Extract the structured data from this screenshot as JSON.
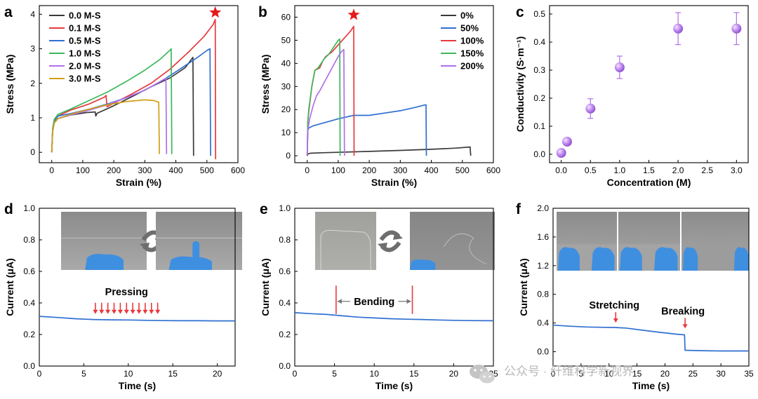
{
  "colors": {
    "black": "#3a3a3a",
    "red": "#e8383d",
    "blue": "#2f6fd0",
    "green": "#3cb85a",
    "purple": "#b070e8",
    "gold": "#d1a017",
    "star": "#e41a1c",
    "photo_bg": "#9a9a9a",
    "glove": "#3f8fe0",
    "arrow_gray": "#6e6e6e",
    "watermark": "#b8b8b8"
  },
  "icons": [
    "star-marker",
    "swap-arrows-icon",
    "down-arrow-marker",
    "wechat-icon"
  ],
  "watermark": "公众号 · 纤维科学新视界",
  "chart_data": [
    {
      "id": "a",
      "panel_label": "a",
      "type": "line",
      "xlabel": "Strain (%)",
      "ylabel": "Stress (MPa)",
      "xlim": [
        -40,
        600
      ],
      "ylim": [
        -0.3,
        4.25
      ],
      "xticks": [
        0,
        100,
        200,
        300,
        400,
        500,
        600
      ],
      "yticks": [
        0,
        1,
        2,
        3,
        4
      ],
      "grid": false,
      "legend_position": "top-left",
      "annotation": "star above the 0.1 M-S curve maximum",
      "star_point": [
        527,
        4.05
      ],
      "series": [
        {
          "name": "0.0 M-S",
          "color": "#3a3a3a",
          "points": [
            [
              0,
              0
            ],
            [
              3,
              0.6
            ],
            [
              8,
              0.85
            ],
            [
              20,
              0.98
            ],
            [
              60,
              1.08
            ],
            [
              110,
              1.15
            ],
            [
              140,
              1.17
            ],
            [
              142,
              1.05
            ],
            [
              146,
              1.13
            ],
            [
              200,
              1.35
            ],
            [
              260,
              1.62
            ],
            [
              320,
              1.9
            ],
            [
              380,
              2.15
            ],
            [
              430,
              2.45
            ],
            [
              455,
              2.75
            ],
            [
              457,
              -0.1
            ]
          ]
        },
        {
          "name": "0.1 M-S",
          "color": "#e8383d",
          "points": [
            [
              0,
              0
            ],
            [
              3,
              0.6
            ],
            [
              8,
              0.9
            ],
            [
              20,
              1.05
            ],
            [
              60,
              1.22
            ],
            [
              120,
              1.4
            ],
            [
              170,
              1.6
            ],
            [
              175,
              1.65
            ],
            [
              178,
              1.32
            ],
            [
              200,
              1.42
            ],
            [
              260,
              1.7
            ],
            [
              320,
              2.0
            ],
            [
              380,
              2.4
            ],
            [
              440,
              2.9
            ],
            [
              490,
              3.35
            ],
            [
              520,
              3.7
            ],
            [
              527,
              3.85
            ],
            [
              528,
              -0.2
            ]
          ]
        },
        {
          "name": "0.5 M-S",
          "color": "#2f6fd0",
          "points": [
            [
              0,
              0
            ],
            [
              3,
              0.65
            ],
            [
              8,
              0.92
            ],
            [
              20,
              1.05
            ],
            [
              60,
              1.12
            ],
            [
              120,
              1.25
            ],
            [
              180,
              1.4
            ],
            [
              240,
              1.58
            ],
            [
              300,
              1.8
            ],
            [
              360,
              2.1
            ],
            [
              420,
              2.45
            ],
            [
              470,
              2.75
            ],
            [
              500,
              2.95
            ],
            [
              510,
              3.0
            ],
            [
              512,
              -0.1
            ]
          ]
        },
        {
          "name": "1.0 M-S",
          "color": "#3cb85a",
          "points": [
            [
              0,
              0
            ],
            [
              3,
              0.7
            ],
            [
              8,
              0.95
            ],
            [
              20,
              1.1
            ],
            [
              60,
              1.25
            ],
            [
              120,
              1.5
            ],
            [
              180,
              1.75
            ],
            [
              240,
              2.05
            ],
            [
              300,
              2.38
            ],
            [
              350,
              2.7
            ],
            [
              380,
              2.95
            ],
            [
              385,
              3.0
            ],
            [
              387,
              -0.05
            ]
          ]
        },
        {
          "name": "2.0 M-S",
          "color": "#b070e8",
          "points": [
            [
              0,
              0
            ],
            [
              3,
              0.6
            ],
            [
              8,
              0.85
            ],
            [
              20,
              0.98
            ],
            [
              60,
              1.08
            ],
            [
              120,
              1.22
            ],
            [
              180,
              1.38
            ],
            [
              240,
              1.58
            ],
            [
              300,
              1.8
            ],
            [
              340,
              2.0
            ],
            [
              368,
              2.15
            ],
            [
              370,
              -0.05
            ]
          ]
        },
        {
          "name": "3.0 M-S",
          "color": "#d1a017",
          "points": [
            [
              0,
              0
            ],
            [
              3,
              0.6
            ],
            [
              8,
              0.85
            ],
            [
              20,
              0.97
            ],
            [
              60,
              1.1
            ],
            [
              120,
              1.25
            ],
            [
              180,
              1.38
            ],
            [
              240,
              1.47
            ],
            [
              300,
              1.52
            ],
            [
              330,
              1.5
            ],
            [
              345,
              1.45
            ],
            [
              347,
              -0.05
            ]
          ]
        }
      ]
    },
    {
      "id": "b",
      "panel_label": "b",
      "type": "line",
      "xlabel": "Strain (%)",
      "ylabel": "Stress (MPa)",
      "xlim": [
        -40,
        600
      ],
      "ylim": [
        -3,
        65
      ],
      "xticks": [
        0,
        100,
        200,
        300,
        400,
        500,
        600
      ],
      "yticks": [
        0,
        10,
        20,
        30,
        40,
        50,
        60
      ],
      "grid": false,
      "legend_position": "top-right",
      "annotation": "star above the 100% curve maximum",
      "star_point": [
        150,
        61
      ],
      "series": [
        {
          "name": "0%",
          "color": "#3a3a3a",
          "points": [
            [
              0,
              0
            ],
            [
              3,
              0.8
            ],
            [
              10,
              1.1
            ],
            [
              50,
              1.3
            ],
            [
              100,
              1.5
            ],
            [
              200,
              1.9
            ],
            [
              300,
              2.3
            ],
            [
              400,
              2.8
            ],
            [
              480,
              3.3
            ],
            [
              525,
              3.8
            ],
            [
              527,
              0
            ]
          ]
        },
        {
          "name": "50%",
          "color": "#2f6fd0",
          "points": [
            [
              0,
              0
            ],
            [
              2,
              11
            ],
            [
              5,
              12
            ],
            [
              20,
              13
            ],
            [
              60,
              14.5
            ],
            [
              100,
              16
            ],
            [
              150,
              17.5
            ],
            [
              200,
              17.5
            ],
            [
              250,
              18.5
            ],
            [
              300,
              19.5
            ],
            [
              350,
              21
            ],
            [
              380,
              22
            ],
            [
              383,
              22
            ],
            [
              384,
              0
            ]
          ]
        },
        {
          "name": "100%",
          "color": "#e8383d",
          "points": [
            [
              0,
              0
            ],
            [
              2,
              15
            ],
            [
              6,
              20
            ],
            [
              15,
              30
            ],
            [
              25,
              37
            ],
            [
              40,
              38
            ],
            [
              50,
              41
            ],
            [
              60,
              43
            ],
            [
              80,
              45
            ],
            [
              100,
              48
            ],
            [
              120,
              51
            ],
            [
              140,
              54
            ],
            [
              150,
              56
            ],
            [
              151,
              0
            ]
          ]
        },
        {
          "name": "150%",
          "color": "#3cb85a",
          "points": [
            [
              0,
              0
            ],
            [
              2,
              15
            ],
            [
              5,
              20
            ],
            [
              15,
              30
            ],
            [
              25,
              37
            ],
            [
              35,
              38
            ],
            [
              45,
              40
            ],
            [
              55,
              42
            ],
            [
              70,
              44
            ],
            [
              90,
              48
            ],
            [
              100,
              50
            ],
            [
              105,
              50.5
            ],
            [
              106,
              0
            ]
          ]
        },
        {
          "name": "200%",
          "color": "#b070e8",
          "points": [
            [
              0,
              0
            ],
            [
              2,
              11
            ],
            [
              8,
              16
            ],
            [
              20,
              22
            ],
            [
              30,
              26
            ],
            [
              40,
              28
            ],
            [
              60,
              33
            ],
            [
              80,
              38
            ],
            [
              100,
              43
            ],
            [
              110,
              45
            ],
            [
              118,
              46
            ],
            [
              120,
              0
            ]
          ]
        }
      ]
    },
    {
      "id": "c",
      "panel_label": "c",
      "type": "scatter",
      "xlabel": "Concentration (M)",
      "ylabel": "Conductivity (S·m⁻¹)",
      "xlim": [
        -0.2,
        3.2
      ],
      "ylim": [
        -0.03,
        0.53
      ],
      "xticks": [
        0.0,
        0.5,
        1.0,
        1.5,
        2.0,
        2.5,
        3.0
      ],
      "xtick_labels": [
        "0.0",
        "0.5",
        "1.0",
        "1.5",
        "2.0",
        "2.5",
        "3.0"
      ],
      "yticks": [
        0.0,
        0.1,
        0.2,
        0.3,
        0.4,
        0.5
      ],
      "ytick_labels": [
        "0.0",
        "0.1",
        "0.2",
        "0.3",
        "0.4",
        "0.5"
      ],
      "grid": false,
      "marker_color": "#b070e8",
      "points": [
        {
          "x": 0.0,
          "y": 0.005,
          "err": 0.0
        },
        {
          "x": 0.1,
          "y": 0.045,
          "err": 0.0
        },
        {
          "x": 0.5,
          "y": 0.163,
          "err": 0.035
        },
        {
          "x": 1.0,
          "y": 0.31,
          "err": 0.04
        },
        {
          "x": 2.0,
          "y": 0.448,
          "err": 0.057
        },
        {
          "x": 3.0,
          "y": 0.448,
          "err": 0.057
        }
      ]
    },
    {
      "id": "d",
      "panel_label": "d",
      "type": "line",
      "xlabel": "Time (s)",
      "ylabel": "Current (μA)",
      "xlim": [
        0,
        22
      ],
      "ylim": [
        0,
        1.0
      ],
      "xticks": [
        0,
        5,
        10,
        15,
        20
      ],
      "yticks": [
        0.0,
        0.2,
        0.4,
        0.6,
        0.8,
        1.0
      ],
      "ytick_labels": [
        "0.0",
        "0.2",
        "0.4",
        "0.6",
        "0.8",
        "1.0"
      ],
      "grid": false,
      "annotation": "Pressing",
      "marker_times": [
        6.3,
        7.0,
        7.7,
        8.4,
        9.1,
        9.8,
        10.5,
        11.2,
        11.9,
        12.6,
        13.3
      ],
      "marker_y": 0.33,
      "photos": 2,
      "series": [
        {
          "name": "",
          "color": "#2f6fd0",
          "points": [
            [
              0,
              0.315
            ],
            [
              2,
              0.308
            ],
            [
              4,
              0.3
            ],
            [
              6,
              0.295
            ],
            [
              8,
              0.293
            ],
            [
              10,
              0.292
            ],
            [
              12,
              0.29
            ],
            [
              14,
              0.288
            ],
            [
              16,
              0.287
            ],
            [
              18,
              0.287
            ],
            [
              20,
              0.286
            ],
            [
              22,
              0.286
            ]
          ]
        }
      ]
    },
    {
      "id": "e",
      "panel_label": "e",
      "type": "line",
      "xlabel": "Time (s)",
      "ylabel": "Current (μA)",
      "xlim": [
        0,
        25
      ],
      "ylim": [
        0,
        1.0
      ],
      "xticks": [
        0,
        5,
        10,
        15,
        20,
        25
      ],
      "yticks": [
        0.0,
        0.2,
        0.4,
        0.6,
        0.8,
        1.0
      ],
      "ytick_labels": [
        "0.0",
        "0.2",
        "0.4",
        "0.6",
        "0.8",
        "1.0"
      ],
      "grid": false,
      "annotation": "Bending",
      "range_markers": [
        5.2,
        14.8
      ],
      "photos": 2,
      "series": [
        {
          "name": "",
          "color": "#2f6fd0",
          "points": [
            [
              0,
              0.338
            ],
            [
              2,
              0.332
            ],
            [
              4,
              0.327
            ],
            [
              6,
              0.318
            ],
            [
              8,
              0.31
            ],
            [
              10,
              0.305
            ],
            [
              12,
              0.3
            ],
            [
              14,
              0.297
            ],
            [
              16,
              0.295
            ],
            [
              18,
              0.292
            ],
            [
              20,
              0.29
            ],
            [
              22,
              0.288
            ],
            [
              25,
              0.287
            ]
          ]
        }
      ]
    },
    {
      "id": "f",
      "panel_label": "f",
      "type": "line",
      "xlabel": "Time (s)",
      "ylabel": "Current (μA)",
      "xlim": [
        0,
        35
      ],
      "ylim": [
        -0.2,
        2.0
      ],
      "xticks": [
        0,
        5,
        10,
        15,
        20,
        25,
        30,
        35
      ],
      "yticks": [
        0.0,
        0.4,
        0.8,
        1.2,
        1.6,
        2.0
      ],
      "ytick_labels": [
        "0.0",
        "0.4",
        "0.8",
        "1.2",
        "1.6",
        "2.0"
      ],
      "grid": false,
      "annotations": [
        {
          "text": "Stretching",
          "x": 11.2
        },
        {
          "text": "Breaking",
          "x": 23.6
        }
      ],
      "photos": 3,
      "series": [
        {
          "name": "",
          "color": "#2f6fd0",
          "points": [
            [
              0,
              0.37
            ],
            [
              3,
              0.355
            ],
            [
              6,
              0.345
            ],
            [
              9,
              0.34
            ],
            [
              11,
              0.338
            ],
            [
              13,
              0.33
            ],
            [
              16,
              0.3
            ],
            [
              19,
              0.27
            ],
            [
              22,
              0.245
            ],
            [
              23.5,
              0.235
            ],
            [
              23.6,
              0.02
            ],
            [
              26,
              0.015
            ],
            [
              30,
              0.01
            ],
            [
              35,
              0.01
            ]
          ]
        }
      ]
    }
  ]
}
